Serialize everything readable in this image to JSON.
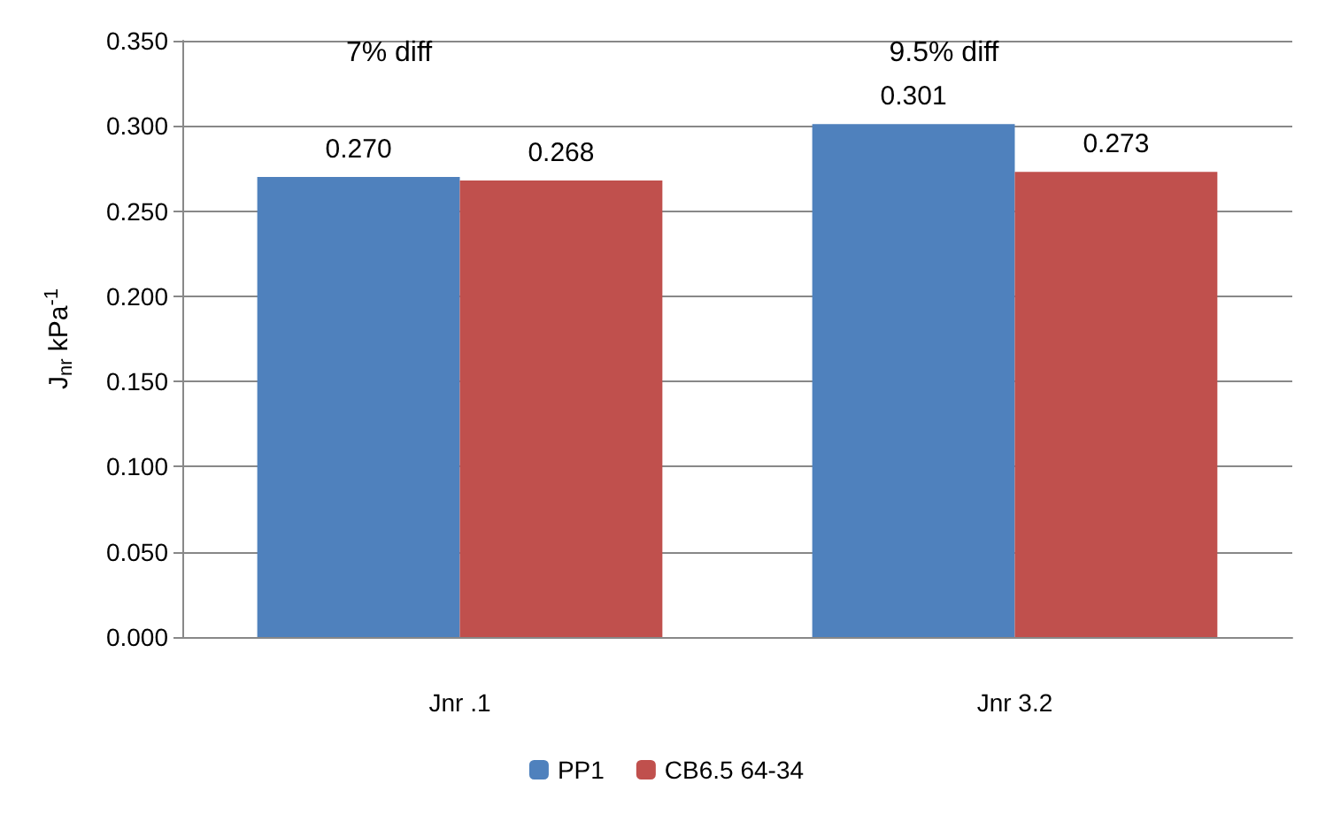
{
  "chart_data": {
    "type": "bar",
    "ylabel": "J$_{nr}$ kPa$^{-1}$",
    "categories": [
      "Jnr .1",
      "Jnr 3.2"
    ],
    "series": [
      {
        "name": "PP1",
        "color": "#4f81bd",
        "values": [
          0.27,
          0.301
        ],
        "value_labels": [
          "0.270",
          "0.301"
        ]
      },
      {
        "name": "CB6.5 64-34",
        "color": "#c0504d",
        "values": [
          0.268,
          0.273
        ],
        "value_labels": [
          "0.268",
          "0.273"
        ]
      }
    ],
    "ylim": [
      0,
      0.35
    ],
    "yticks": [
      {
        "value": 0,
        "label": "0.000"
      },
      {
        "value": 0.05,
        "label": "0.050"
      },
      {
        "value": 0.1,
        "label": "0.100"
      },
      {
        "value": 0.15,
        "label": "0.150"
      },
      {
        "value": 0.2,
        "label": "0.200"
      },
      {
        "value": 0.25,
        "label": "0.250"
      },
      {
        "value": 0.3,
        "label": "0.300"
      },
      {
        "value": 0.35,
        "label": "0.350"
      }
    ],
    "annotations": [
      "7% diff",
      "9.5% diff"
    ],
    "grid": "y",
    "legend": "bottom"
  }
}
